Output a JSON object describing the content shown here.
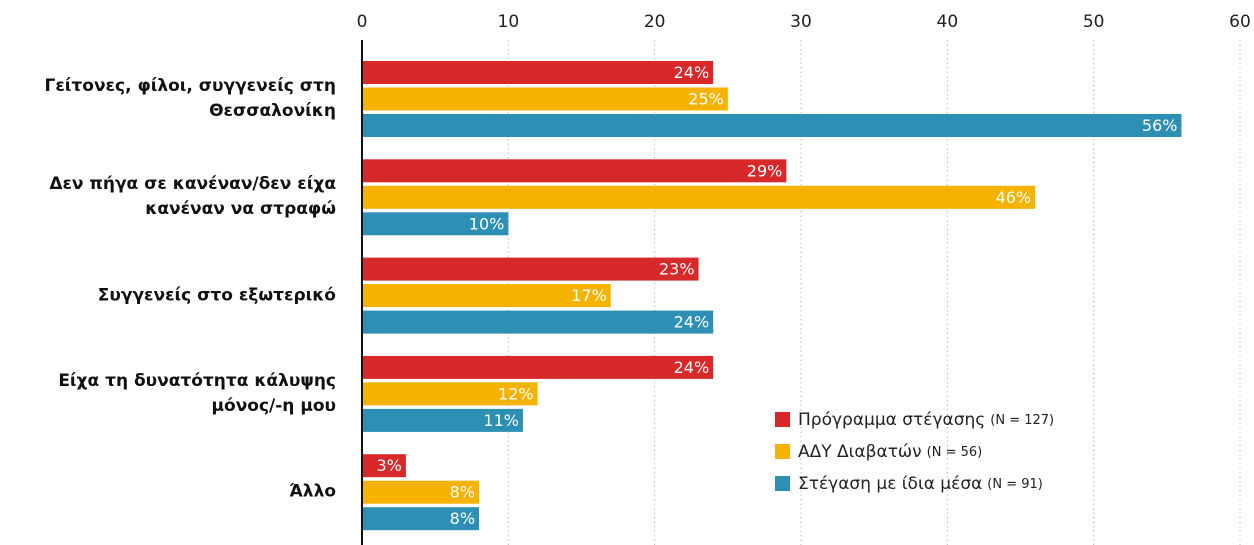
{
  "chart_data": {
    "type": "bar",
    "orientation": "horizontal",
    "categories": [
      "Γείτονες, φίλοι, συγγενείς στη Θεσσαλονίκη",
      "Δεν πήγα σε κανέναν/δεν είχα κανέναν να στραφώ",
      "Συγγενείς στο εξωτερικό",
      "Είχα τη δυνατότητα κάλυψης μόνος/-η μου",
      "Άλλο"
    ],
    "series": [
      {
        "name": "Πρόγραμμα στέγασης",
        "n_label": "(N = 127)",
        "color": "#d7282a",
        "values": [
          24,
          29,
          23,
          24,
          3
        ],
        "value_labels": [
          "24%",
          "29%",
          "23%",
          "24%",
          "3%"
        ]
      },
      {
        "name": "ΑΔΥ Διαβατών",
        "n_label": "(N = 56)",
        "color": "#f5b300",
        "values": [
          25,
          46,
          17,
          12,
          8
        ],
        "value_labels": [
          "25%",
          "46%",
          "17%",
          "12%",
          "8%"
        ]
      },
      {
        "name": "Στέγαση με ίδια μέσα",
        "n_label": "(N = 91)",
        "color": "#2e8fb5",
        "values": [
          56,
          10,
          24,
          11,
          8
        ],
        "value_labels": [
          "56%",
          "10%",
          "24%",
          "11%",
          "8%"
        ]
      }
    ],
    "xlim": [
      0,
      60
    ],
    "xticks": [
      0,
      10,
      20,
      30,
      40,
      50,
      60
    ],
    "grid": true,
    "legend": "lower right"
  }
}
